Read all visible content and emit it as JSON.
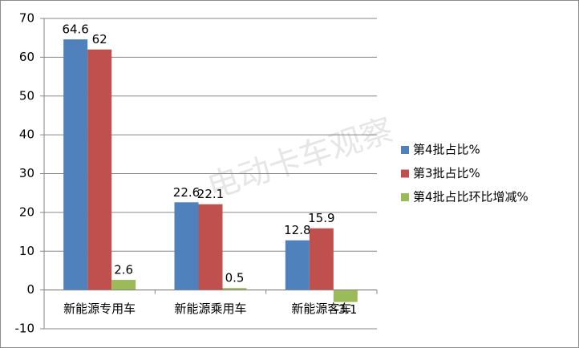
{
  "chart_data": {
    "type": "bar",
    "categories": [
      "新能源专用车",
      "新能源乘用车",
      "新能源客车"
    ],
    "series": [
      {
        "name": "第4批占比%",
        "color": "#4f81bd",
        "values": [
          64.6,
          22.6,
          12.8
        ]
      },
      {
        "name": "第3批占比%",
        "color": "#c0504d",
        "values": [
          62,
          22.1,
          15.9
        ]
      },
      {
        "name": "第4批占比环比增减%",
        "color": "#9bbb59",
        "values": [
          2.6,
          0.5,
          -3.1
        ]
      }
    ],
    "ylim": [
      -10,
      70
    ],
    "yticks": [
      -10,
      0,
      10,
      20,
      30,
      40,
      50,
      60,
      70
    ],
    "grid": true,
    "legend": "right",
    "watermark": "电动卡车观察"
  }
}
